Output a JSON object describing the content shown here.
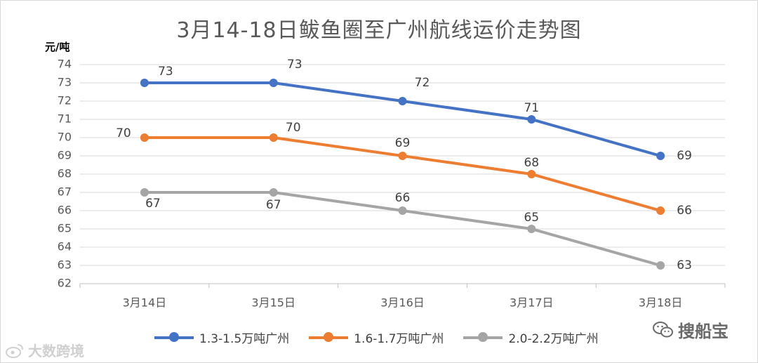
{
  "chart_data": {
    "type": "line",
    "title": "3月14-18日鲅鱼圈至广州航线运价走势图",
    "ylabel": "元/吨",
    "xlabel": "",
    "categories": [
      "3月14日",
      "3月15日",
      "3月16日",
      "3月17日",
      "3月18日"
    ],
    "ylim": [
      62,
      74
    ],
    "yticks": [
      62,
      63,
      64,
      65,
      66,
      67,
      68,
      69,
      70,
      71,
      72,
      73,
      74
    ],
    "grid": true,
    "legend": "bottom",
    "series": [
      {
        "name": "1.3-1.5万吨广州",
        "color": "#4472C4",
        "values": [
          73,
          73,
          72,
          71,
          69
        ]
      },
      {
        "name": "1.6-1.7万吨广州",
        "color": "#ED7D31",
        "values": [
          70,
          70,
          69,
          68,
          66
        ]
      },
      {
        "name": "2.0-2.2万吨广州",
        "color": "#A5A5A5",
        "values": [
          67,
          67,
          66,
          65,
          63
        ]
      }
    ]
  },
  "watermarks": {
    "left_text": "大数跨境",
    "right_text": "搜船宝"
  },
  "icons": {
    "left": "weibo-icon",
    "right": "wechat-icon"
  }
}
